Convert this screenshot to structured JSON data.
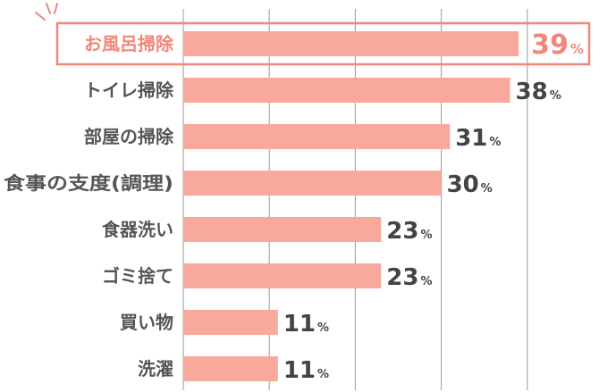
{
  "chart_data": {
    "type": "bar",
    "orientation": "horizontal",
    "categories": [
      "お風呂掃除",
      "トイレ掃除",
      "部屋の掃除",
      "食事の支度(調理)",
      "食器洗い",
      "ゴミ捨て",
      "買い物",
      "洗濯"
    ],
    "values": [
      39,
      38,
      31,
      30,
      23,
      23,
      11,
      11
    ],
    "unit": "%",
    "highlight_index": 0,
    "xlim": [
      0,
      40
    ],
    "grid": true,
    "colors": {
      "bar": "#f8a99c",
      "highlight": "#f0877a",
      "grid": "#999999",
      "label": "#555555",
      "value": "#444444"
    }
  }
}
